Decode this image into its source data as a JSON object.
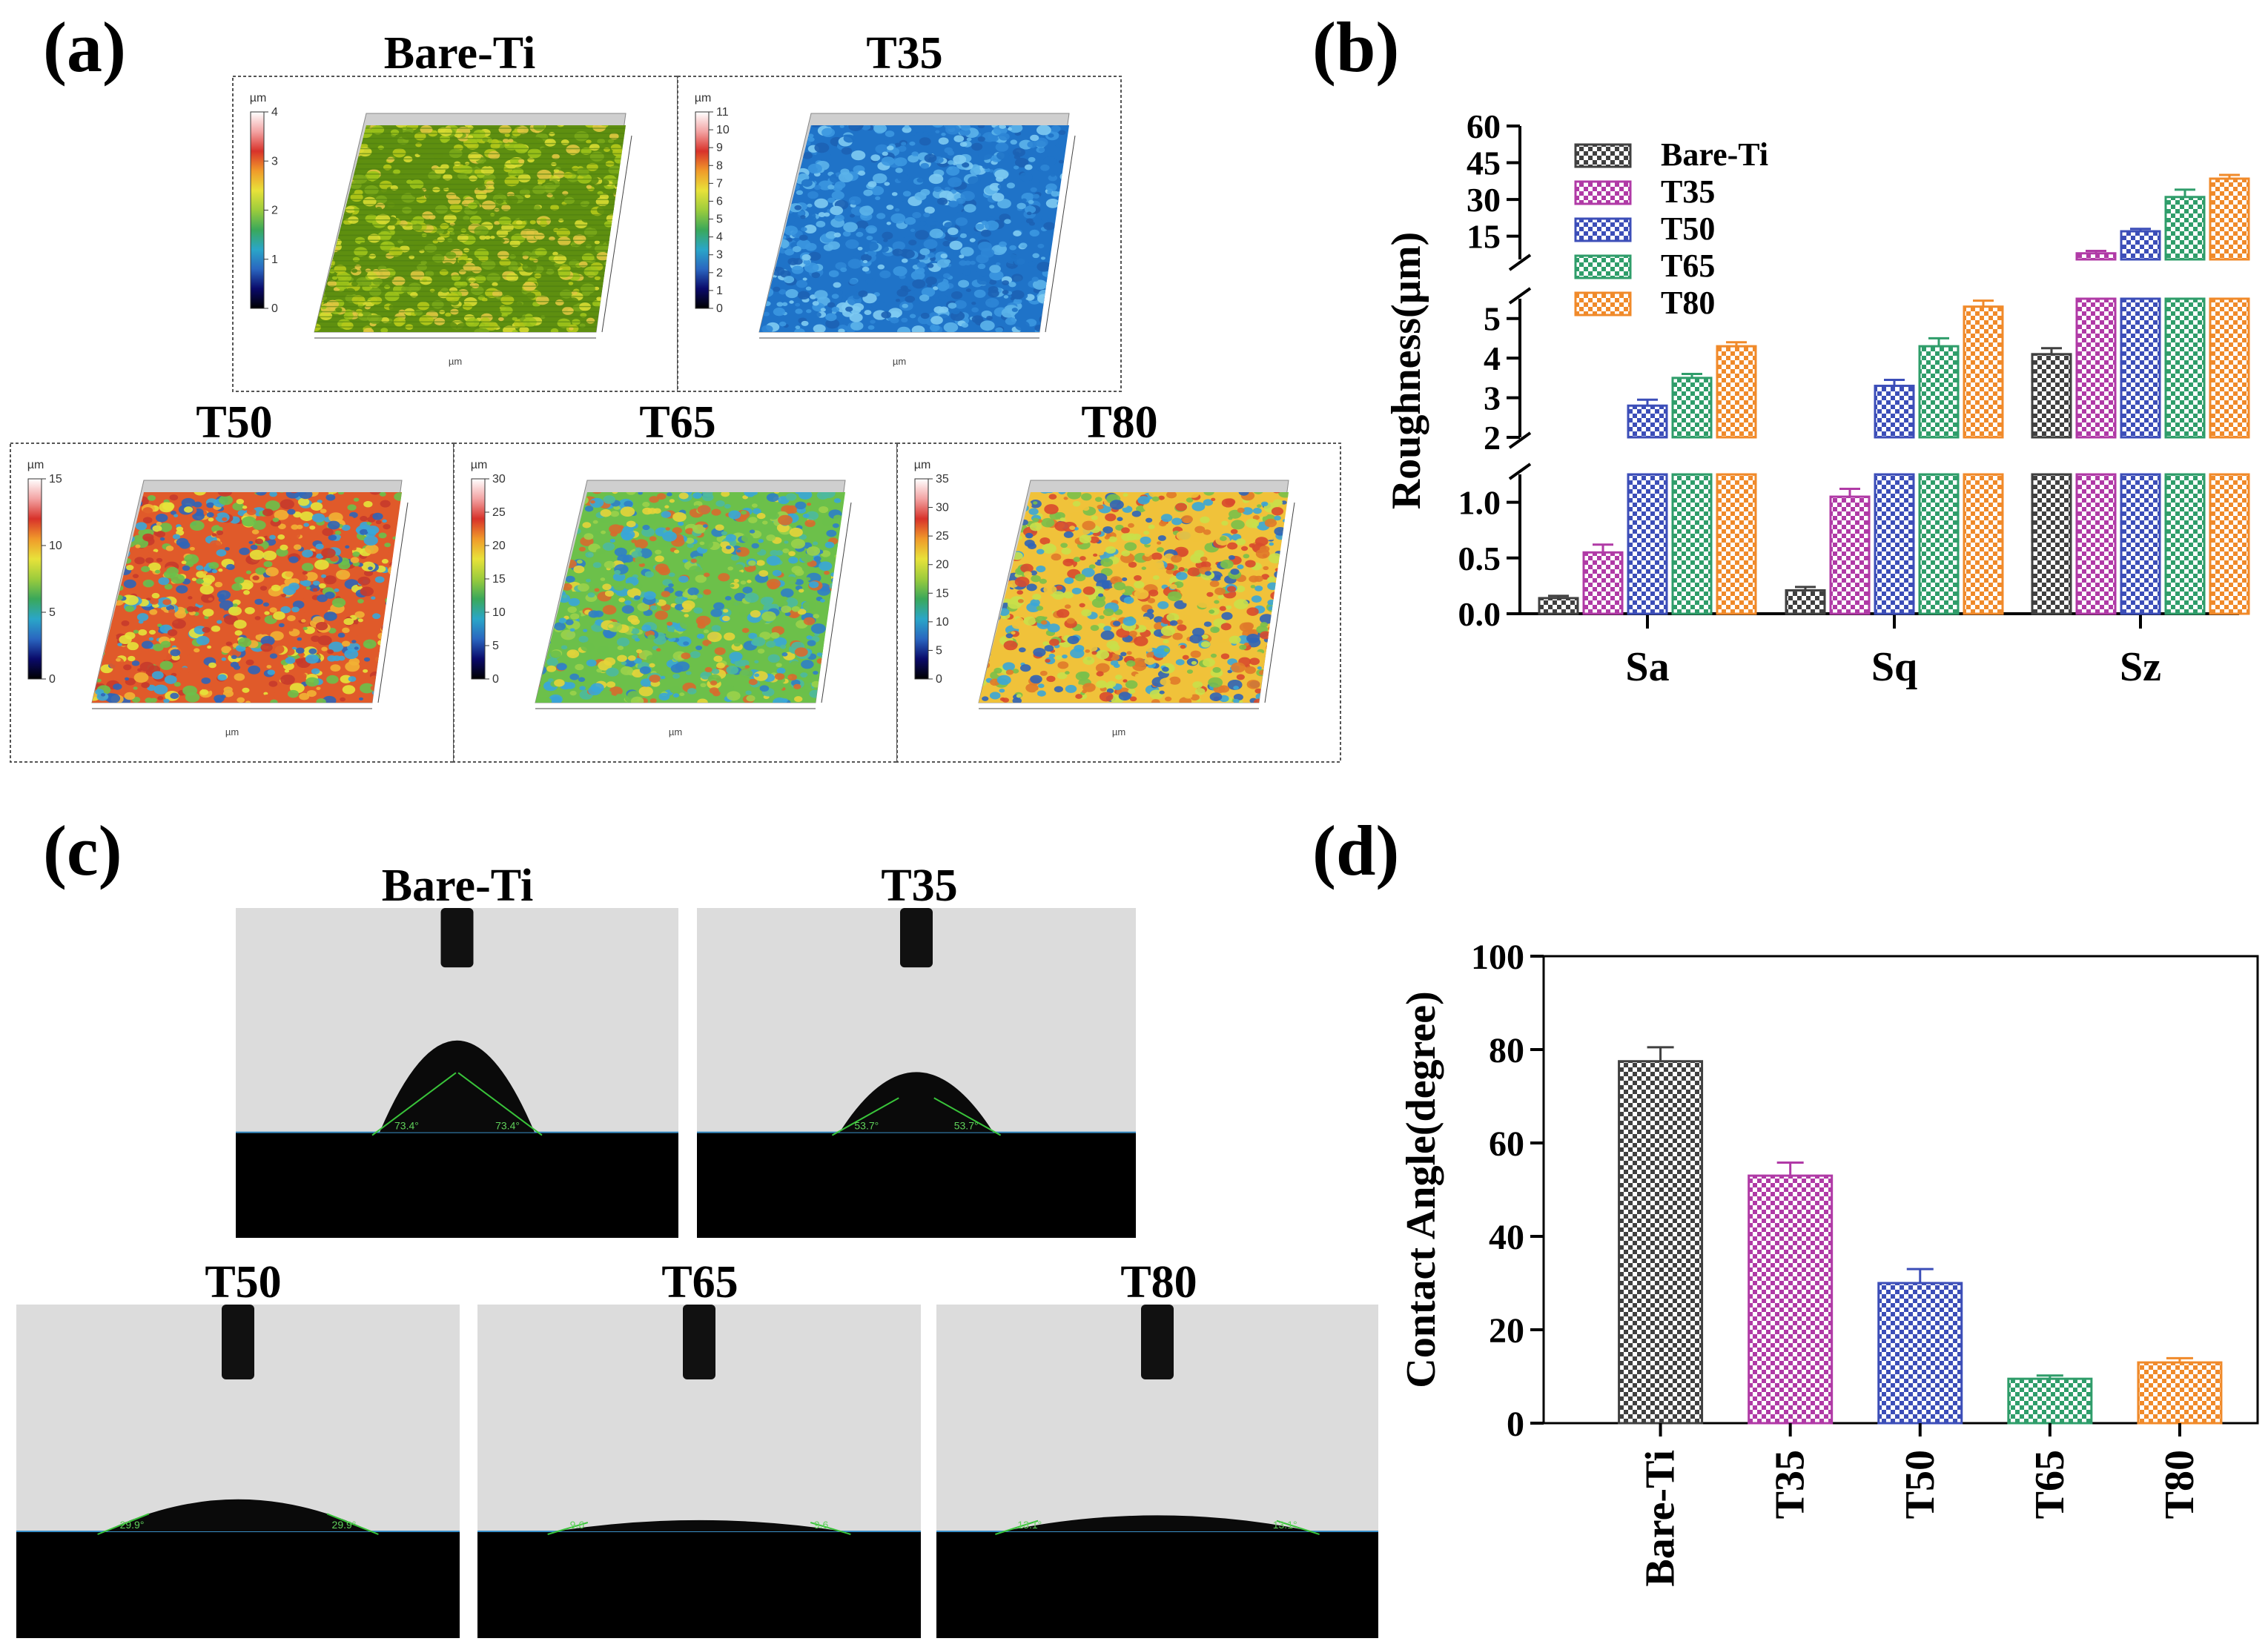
{
  "panels": {
    "a": {
      "letter": "(a)",
      "unit_label": "µm",
      "axis_unit": "µm",
      "maps": [
        {
          "title": "Bare-Ti",
          "scale": [
            "4",
            "3",
            "2",
            "1",
            "0"
          ],
          "pal": [
            "#5e8f10",
            "#b5c91a",
            "#d8dc32",
            "#9fc41b",
            "#7aa819",
            "#e0c840"
          ]
        },
        {
          "title": "T35",
          "scale": [
            "11",
            "10",
            "9",
            "8",
            "7",
            "6",
            "5",
            "4",
            "3",
            "2",
            "1",
            "0"
          ],
          "pal": [
            "#1f73c8",
            "#3b97e0",
            "#5cb4ea",
            "#2d86d6",
            "#7ecbf2",
            "#1c62b4"
          ]
        },
        {
          "title": "T50",
          "scale": [
            "15",
            "10",
            "5",
            "0"
          ],
          "pal": [
            "#e05a2a",
            "#f2b134",
            "#e6e33a",
            "#6cc04a",
            "#3aa6d8",
            "#2f64b8",
            "#c73a2b"
          ]
        },
        {
          "title": "T65",
          "scale": [
            "30",
            "25",
            "20",
            "15",
            "10",
            "5",
            "0"
          ],
          "pal": [
            "#6cc04a",
            "#3aa6d8",
            "#4cb99e",
            "#e6d43a",
            "#2f7fc6",
            "#9bd24a",
            "#d86a2e"
          ]
        },
        {
          "title": "T80",
          "scale": [
            "35",
            "30",
            "25",
            "20",
            "15",
            "10",
            "5",
            "0"
          ],
          "pal": [
            "#f0c23a",
            "#7ac04a",
            "#3aa6d8",
            "#e07a2a",
            "#c9e04a",
            "#2f64b8",
            "#d84a2e"
          ]
        }
      ]
    },
    "b": {
      "letter": "(b)"
    },
    "c": {
      "letter": "(c)",
      "images": [
        {
          "title": "Bare-Ti",
          "angle_left": "73.4°",
          "angle_right": "73.4°"
        },
        {
          "title": "T35",
          "angle_left": "53.7°",
          "angle_right": "53.7°"
        },
        {
          "title": "T50",
          "angle_left": "29.9°",
          "angle_right": "29.9°"
        },
        {
          "title": "T65",
          "angle_left": "9.6",
          "angle_right": "9.6"
        },
        {
          "title": "T80",
          "angle_left": "13.1°",
          "angle_right": "13.1°"
        }
      ]
    },
    "d": {
      "letter": "(d)"
    }
  },
  "chart_data": [
    {
      "type": "bar",
      "panel": "b",
      "ylabel": "Roughness(µm)",
      "categories": [
        "Sa",
        "Sq",
        "Sz"
      ],
      "series": [
        {
          "name": "Bare-Ti",
          "color": "#404040",
          "values": [
            0.14,
            0.21,
            4.1
          ],
          "errors": [
            0.02,
            0.03,
            0.15
          ]
        },
        {
          "name": "T35",
          "color": "#b03aa6",
          "values": [
            0.55,
            1.05,
            8.0
          ],
          "errors": [
            0.07,
            0.07,
            1.0
          ]
        },
        {
          "name": "T50",
          "color": "#3c4eb8",
          "values": [
            2.8,
            3.3,
            17.0
          ],
          "errors": [
            0.15,
            0.15,
            1.0
          ]
        },
        {
          "name": "T65",
          "color": "#2f9d6a",
          "values": [
            3.5,
            4.3,
            31.0
          ],
          "errors": [
            0.1,
            0.2,
            3.0
          ]
        },
        {
          "name": "T80",
          "color": "#f08a2a",
          "values": [
            4.3,
            5.3,
            38.5
          ],
          "errors": [
            0.1,
            0.15,
            1.5
          ]
        }
      ],
      "y_segments": [
        {
          "range": [
            0,
            1.25
          ],
          "ticks": [
            "0.0",
            "0.5",
            "1.0"
          ]
        },
        {
          "range": [
            2,
            5.5
          ],
          "ticks": [
            "2",
            "3",
            "4",
            "5"
          ]
        },
        {
          "range": [
            5.5,
            60
          ],
          "ticks": [
            "15",
            "30",
            "45",
            "60"
          ]
        }
      ],
      "legend": "top-left"
    },
    {
      "type": "bar",
      "panel": "d",
      "ylabel": "Contact Angle(degree)",
      "categories": [
        "Bare-Ti",
        "T35",
        "T50",
        "T65",
        "T80"
      ],
      "values": [
        77.5,
        53.0,
        30.0,
        9.5,
        13.0
      ],
      "errors": [
        3.0,
        2.8,
        3.0,
        0.7,
        0.9
      ],
      "colors": [
        "#404040",
        "#b03aa6",
        "#3c4eb8",
        "#2f9d6a",
        "#f08a2a"
      ],
      "ylim": [
        0,
        100
      ],
      "yticks": [
        "0",
        "20",
        "40",
        "60",
        "80",
        "100"
      ]
    }
  ]
}
